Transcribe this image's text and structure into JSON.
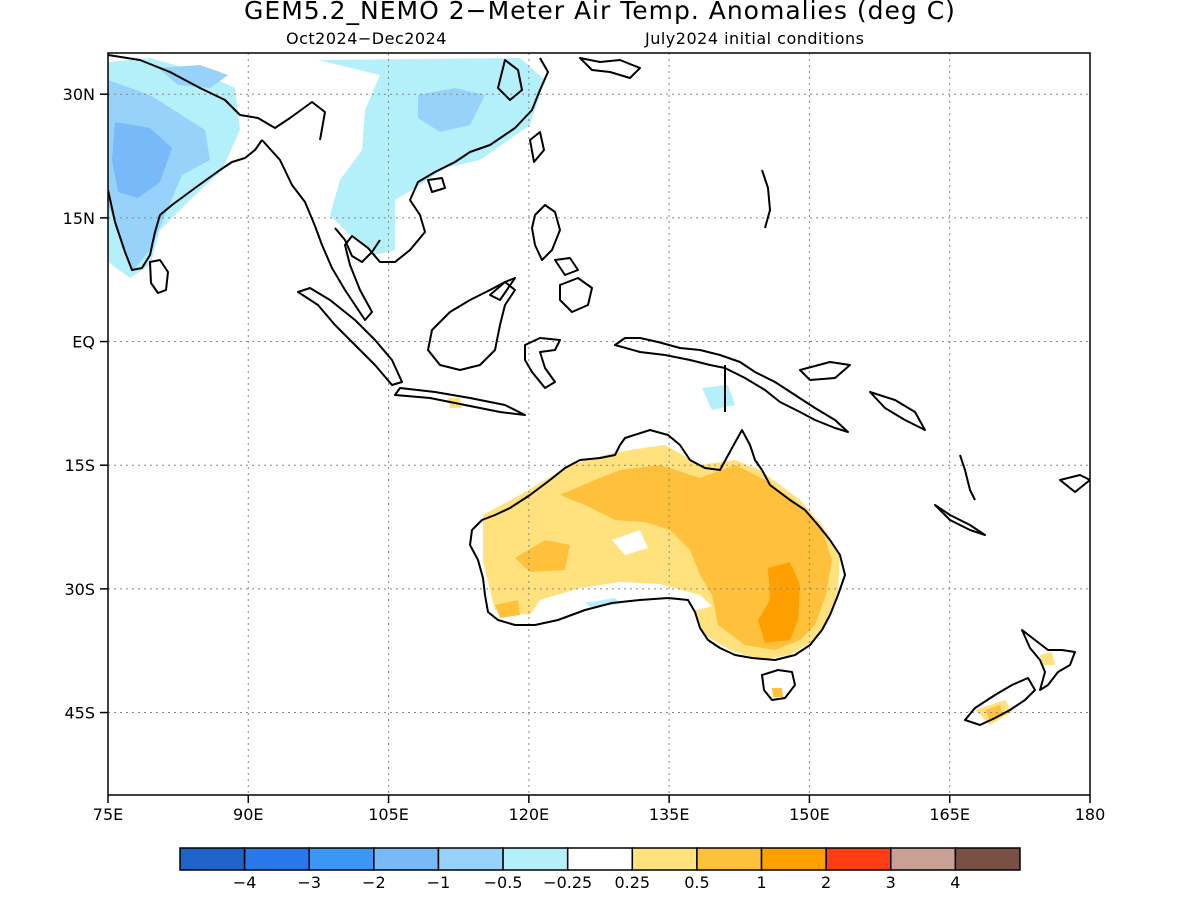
{
  "title": "GEM5.2_NEMO 2−Meter Air Temp. Anomalies (deg C)",
  "subtitle_left": "Oct2024−Dec2024",
  "subtitle_right": "July2024 initial conditions",
  "map": {
    "lon_range": [
      75,
      180
    ],
    "lat_range": [
      -55,
      35
    ],
    "lon_ticks": [
      {
        "v": 75,
        "label": "75E"
      },
      {
        "v": 90,
        "label": "90E"
      },
      {
        "v": 105,
        "label": "105E"
      },
      {
        "v": 120,
        "label": "120E"
      },
      {
        "v": 135,
        "label": "135E"
      },
      {
        "v": 150,
        "label": "150E"
      },
      {
        "v": 165,
        "label": "165E"
      },
      {
        "v": 180,
        "label": "180"
      }
    ],
    "lat_ticks": [
      {
        "v": 30,
        "label": "30N"
      },
      {
        "v": 15,
        "label": "15N"
      },
      {
        "v": 0,
        "label": "EQ"
      },
      {
        "v": -15,
        "label": "15S"
      },
      {
        "v": -30,
        "label": "30S"
      },
      {
        "v": -45,
        "label": "45S"
      }
    ],
    "grid": "dotted",
    "coastline_color": "#000000"
  },
  "colorbar": {
    "colors": [
      "#1e64c8",
      "#2878eb",
      "#3c96f5",
      "#78b9fa",
      "#96d2fa",
      "#b4f0fa",
      "#ffffff",
      "#ffe17d",
      "#ffc03c",
      "#ffa000",
      "#ff3c14",
      "#c8a096",
      "#785046"
    ],
    "labels": [
      "−4",
      "−3",
      "−2",
      "−1",
      "−0.5",
      "−0.25",
      "0.25",
      "0.5",
      "1",
      "2",
      "3",
      "4"
    ]
  }
}
